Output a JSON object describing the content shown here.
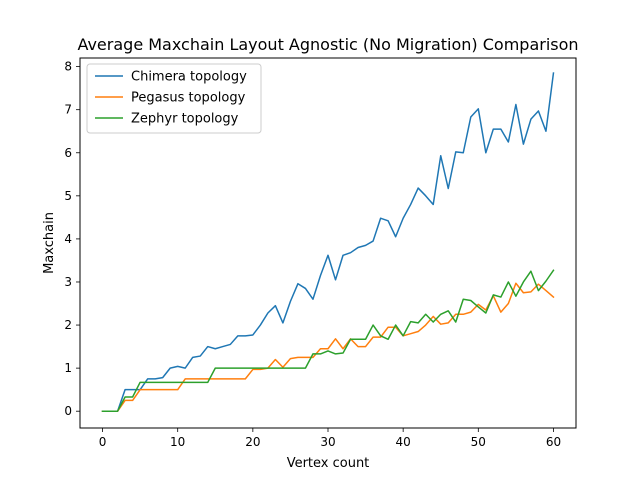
{
  "chart_data": {
    "type": "line",
    "title": "Average Maxchain Layout Agnostic (No Migration) Comparison",
    "xlabel": "Vertex count",
    "ylabel": "Maxchain",
    "xlim": [
      -3,
      63
    ],
    "ylim": [
      -0.39,
      8.2
    ],
    "xticks": [
      0,
      10,
      20,
      30,
      40,
      50,
      60
    ],
    "yticks": [
      0,
      1,
      2,
      3,
      4,
      5,
      6,
      7,
      8
    ],
    "grid": false,
    "legend_position": "upper left",
    "x": [
      0,
      1,
      2,
      3,
      4,
      5,
      6,
      7,
      8,
      9,
      10,
      11,
      12,
      13,
      14,
      15,
      16,
      17,
      18,
      19,
      20,
      21,
      22,
      23,
      24,
      25,
      26,
      27,
      28,
      29,
      30,
      31,
      32,
      33,
      34,
      35,
      36,
      37,
      38,
      39,
      40,
      41,
      42,
      43,
      44,
      45,
      46,
      47,
      48,
      49,
      50,
      51,
      52,
      53,
      54,
      55,
      56,
      57,
      58,
      59,
      60
    ],
    "series": [
      {
        "name": "Chimera topology",
        "color": "#1f77b4",
        "values": [
          0,
          0,
          0,
          0.5,
          0.5,
          0.5,
          0.75,
          0.75,
          0.78,
          1.0,
          1.04,
          1.0,
          1.25,
          1.28,
          1.5,
          1.45,
          1.5,
          1.55,
          1.75,
          1.75,
          1.77,
          2.0,
          2.28,
          2.45,
          2.05,
          2.55,
          2.96,
          2.85,
          2.6,
          3.15,
          3.62,
          3.05,
          3.62,
          3.68,
          3.8,
          3.85,
          3.95,
          4.48,
          4.42,
          4.05,
          4.48,
          4.8,
          5.18,
          5.0,
          4.8,
          5.93,
          5.17,
          6.02,
          6.0,
          6.83,
          7.02,
          6.0,
          6.55,
          6.55,
          6.25,
          7.12,
          6.2,
          6.78,
          6.97,
          6.5,
          7.85
        ]
      },
      {
        "name": "Pegasus topology",
        "color": "#ff7f0e",
        "values": [
          0,
          0,
          0,
          0.25,
          0.25,
          0.5,
          0.5,
          0.5,
          0.5,
          0.5,
          0.5,
          0.75,
          0.75,
          0.75,
          0.75,
          0.75,
          0.75,
          0.75,
          0.75,
          0.75,
          0.97,
          0.97,
          1.0,
          1.2,
          1.02,
          1.22,
          1.25,
          1.25,
          1.25,
          1.45,
          1.45,
          1.68,
          1.45,
          1.68,
          1.5,
          1.5,
          1.72,
          1.72,
          1.95,
          1.95,
          1.75,
          1.8,
          1.85,
          2.0,
          2.2,
          2.02,
          2.05,
          2.25,
          2.25,
          2.3,
          2.48,
          2.35,
          2.68,
          2.3,
          2.5,
          2.97,
          2.75,
          2.77,
          2.95,
          2.8,
          2.65
        ]
      },
      {
        "name": "Zephyr topology",
        "color": "#2ca02c",
        "values": [
          0,
          0,
          0,
          0.33,
          0.33,
          0.67,
          0.67,
          0.67,
          0.67,
          0.67,
          0.67,
          0.67,
          0.67,
          0.67,
          0.67,
          1.0,
          1.0,
          1.0,
          1.0,
          1.0,
          1.0,
          1.0,
          1.0,
          1.0,
          1.0,
          1.0,
          1.0,
          1.0,
          1.33,
          1.33,
          1.4,
          1.33,
          1.35,
          1.67,
          1.67,
          1.67,
          2.0,
          1.75,
          1.67,
          2.0,
          1.75,
          2.08,
          2.05,
          2.25,
          2.07,
          2.25,
          2.33,
          2.07,
          2.6,
          2.57,
          2.42,
          2.28,
          2.7,
          2.65,
          3.0,
          2.67,
          3.0,
          3.25,
          2.8,
          3.02,
          3.27
        ]
      }
    ]
  }
}
